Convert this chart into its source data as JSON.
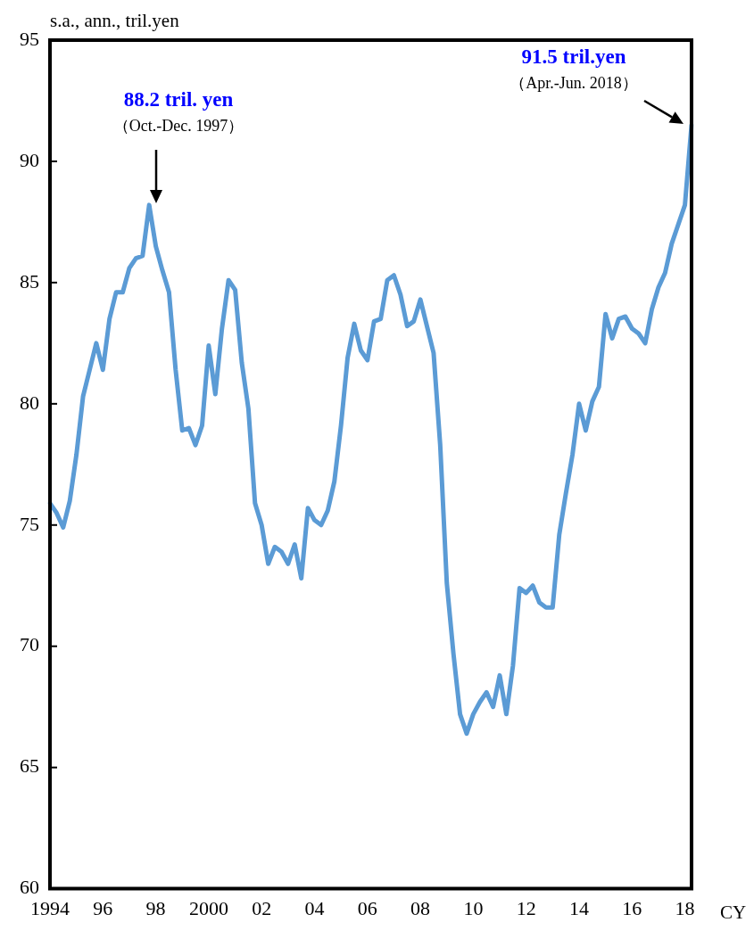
{
  "chart_data": {
    "type": "line",
    "ylabel": "s.a., ann., tril.yen",
    "xlabel": "CY",
    "categories": [
      "1994",
      null,
      null,
      null,
      null,
      null,
      null,
      null,
      "96",
      null,
      null,
      null,
      null,
      null,
      null,
      null,
      "98",
      null,
      null,
      null,
      null,
      null,
      null,
      null,
      "2000",
      null,
      null,
      null,
      null,
      null,
      null,
      null,
      "02",
      null,
      null,
      null,
      null,
      null,
      null,
      null,
      "04",
      null,
      null,
      null,
      null,
      null,
      null,
      null,
      "06",
      null,
      null,
      null,
      null,
      null,
      null,
      null,
      "08",
      null,
      null,
      null,
      null,
      null,
      null,
      null,
      "10",
      null,
      null,
      null,
      null,
      null,
      null,
      null,
      "12",
      null,
      null,
      null,
      null,
      null,
      null,
      null,
      "14",
      null,
      null,
      null,
      null,
      null,
      null,
      null,
      "16",
      null,
      null,
      null,
      null,
      null,
      null,
      null,
      "18",
      null
    ],
    "ylim": [
      60,
      95
    ],
    "yticks": [
      60,
      65,
      70,
      75,
      80,
      85,
      90,
      95
    ],
    "grid": false,
    "legend": false,
    "series": [
      {
        "color": "#5b9bd5",
        "values": [
          75.9,
          75.5,
          74.9,
          76.0,
          77.9,
          80.3,
          81.4,
          82.5,
          81.4,
          83.5,
          84.6,
          84.6,
          85.6,
          86.0,
          86.1,
          88.2,
          86.5,
          85.5,
          84.6,
          81.4,
          78.9,
          79.0,
          78.3,
          79.1,
          82.4,
          80.4,
          83.1,
          85.1,
          84.7,
          81.7,
          79.8,
          75.9,
          75.0,
          73.4,
          74.1,
          73.9,
          73.4,
          74.2,
          72.8,
          75.7,
          75.2,
          75.0,
          75.6,
          76.8,
          79.1,
          81.9,
          83.3,
          82.2,
          81.8,
          83.4,
          83.5,
          85.1,
          85.3,
          84.5,
          83.2,
          83.4,
          84.3,
          83.2,
          82.1,
          78.3,
          72.6,
          69.7,
          67.2,
          66.4,
          67.2,
          67.7,
          68.1,
          67.5,
          68.8,
          67.2,
          69.2,
          72.4,
          72.2,
          72.5,
          71.8,
          71.6,
          71.6,
          74.6,
          76.3,
          77.9,
          80.0,
          78.9,
          80.1,
          80.7,
          83.7,
          82.7,
          83.5,
          83.6,
          83.1,
          82.9,
          82.5,
          83.9,
          84.8,
          85.4,
          86.6,
          87.4,
          88.2,
          91.5
        ]
      }
    ],
    "annotations": [
      "88.2 tril. yen",
      "（Oct.-Dec. 1997）",
      "91.5 tril.yen",
      "（Apr.-Jun. 2018）"
    ]
  }
}
